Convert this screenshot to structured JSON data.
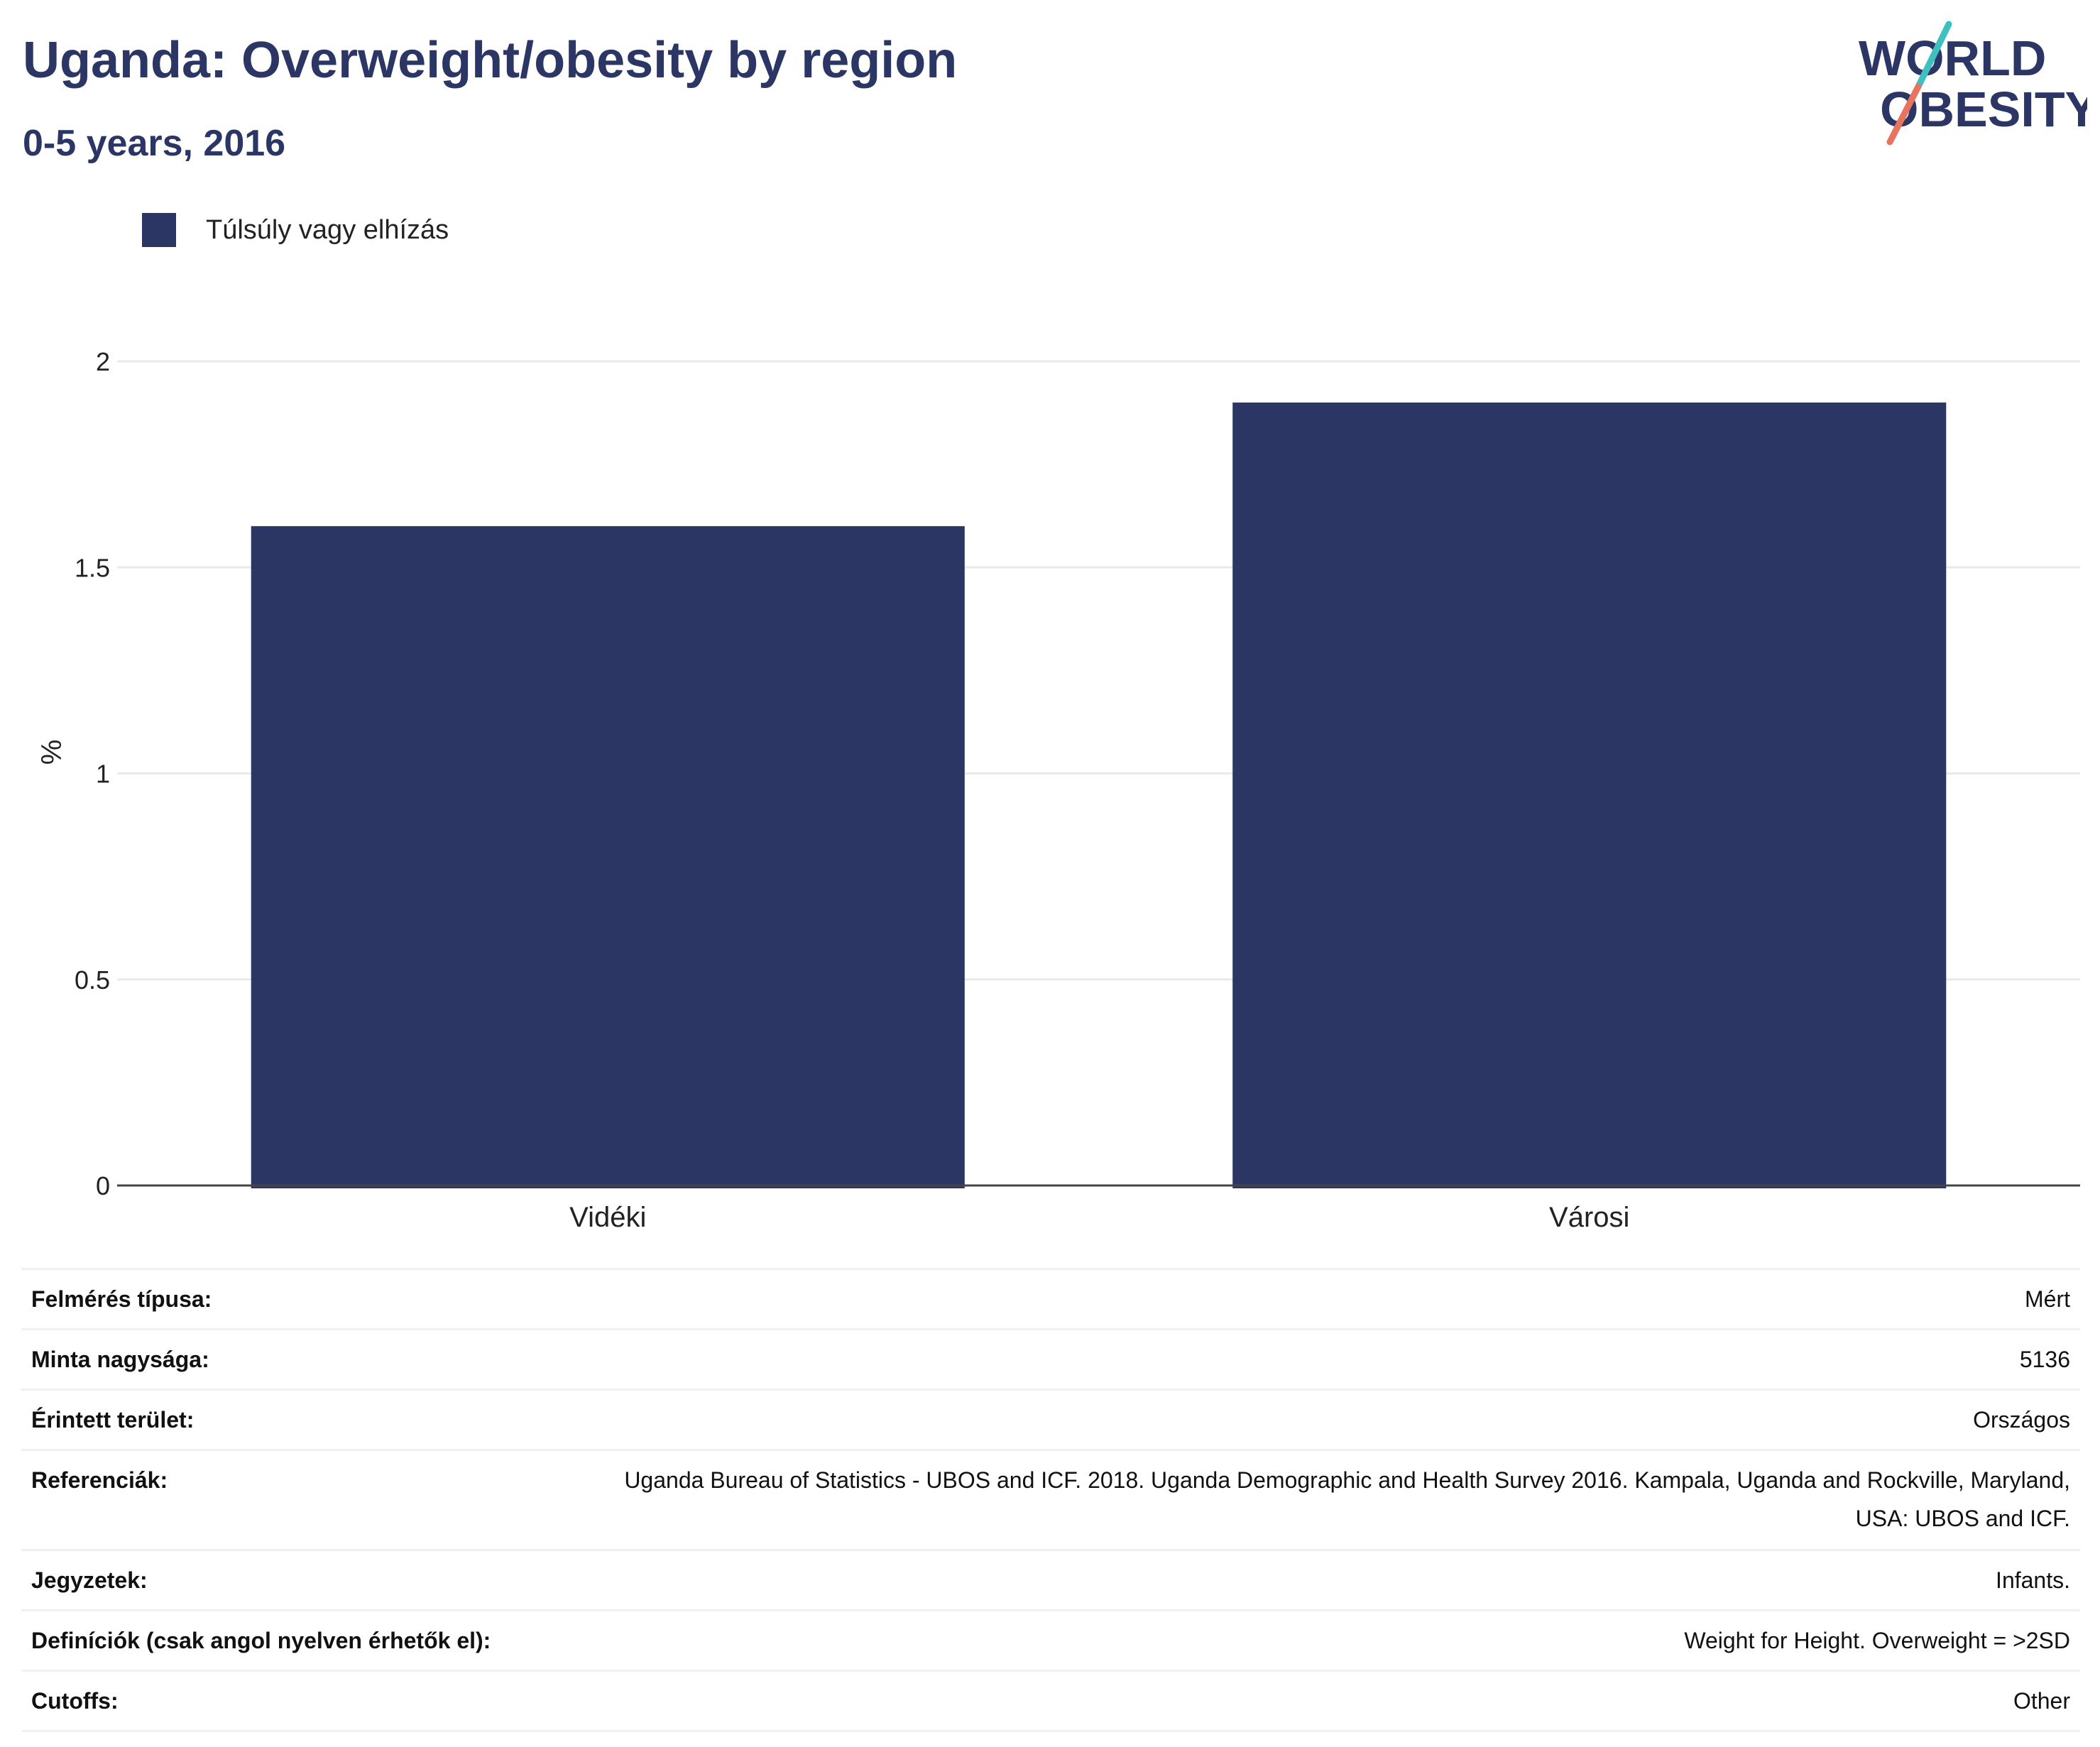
{
  "header": {
    "title": "Uganda: Overweight/obesity by region",
    "subtitle": "0-5 years, 2016"
  },
  "logo": {
    "line1": "WORLD",
    "line2": "OBESITY",
    "colors": {
      "navy": "#2b3664",
      "teal": "#3fbfbf",
      "coral": "#e8735f"
    }
  },
  "legend": {
    "label": "Túlsúly vagy elhízás",
    "color": "#2b3664"
  },
  "chart_data": {
    "type": "bar",
    "categories": [
      "Vidéki",
      "Városi"
    ],
    "series": [
      {
        "name": "Túlsúly vagy elhízás",
        "values": [
          1.6,
          1.9
        ],
        "color": "#2b3664"
      }
    ],
    "ylabel": "%",
    "ylim": [
      0,
      2
    ],
    "yticks": [
      "0",
      "0.5",
      "1",
      "1.5",
      "2"
    ],
    "grid": true,
    "legend_position": "top-left"
  },
  "metadata": [
    {
      "key": "Felmérés típusa:",
      "value": "Mért"
    },
    {
      "key": "Minta nagysága:",
      "value": "5136"
    },
    {
      "key": "Érintett terület:",
      "value": "Országos"
    },
    {
      "key": "Referenciák:",
      "value": "Uganda Bureau of Statistics - UBOS and ICF. 2018. Uganda Demographic and Health Survey 2016. Kampala, Uganda and Rockville, Maryland, USA: UBOS and ICF."
    },
    {
      "key": "Jegyzetek:",
      "value": "Infants."
    },
    {
      "key": "Definíciók (csak angol nyelven érhetők el):",
      "value": "Weight for Height. Overweight = >2SD"
    },
    {
      "key": "Cutoffs:",
      "value": "Other"
    }
  ]
}
